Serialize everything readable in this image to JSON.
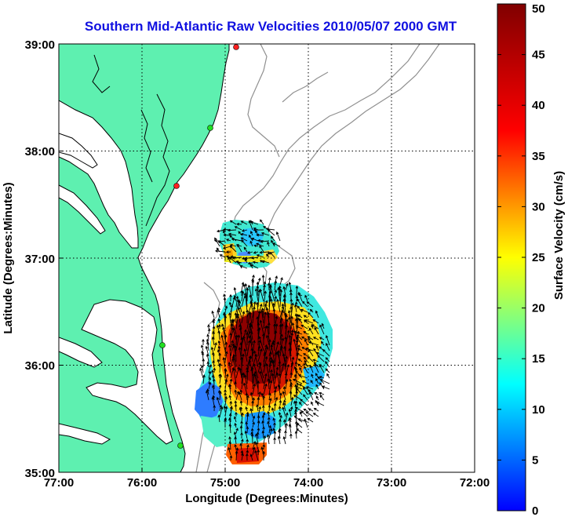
{
  "title": "Southern Mid-Atlantic Raw Velocities 2010/05/07 2000 GMT",
  "x_axis": {
    "label": "Longitude (Degrees:Minutes)",
    "ticks": [
      "77:00",
      "76:00",
      "75:00",
      "74:00",
      "73:00",
      "72:00"
    ]
  },
  "y_axis": {
    "label": "Latitude (Degrees:Minutes)",
    "ticks": [
      "39:00",
      "38:00",
      "37:00",
      "36:00",
      "35:00"
    ]
  },
  "colorbar": {
    "label": "Surface Velocity (cm/s)",
    "ticks": [
      "0",
      "5",
      "10",
      "15",
      "20",
      "25",
      "30",
      "35",
      "40",
      "45",
      "50"
    ],
    "range": [
      0,
      50
    ],
    "colormap": "jet"
  },
  "map": {
    "lon_range": [
      -77,
      -72
    ],
    "lat_range": [
      35,
      39
    ],
    "land_color": "#5ef0b0",
    "coastline_color": "#000000",
    "bathymetry_color": "#909090",
    "grid": "dotted"
  }
}
